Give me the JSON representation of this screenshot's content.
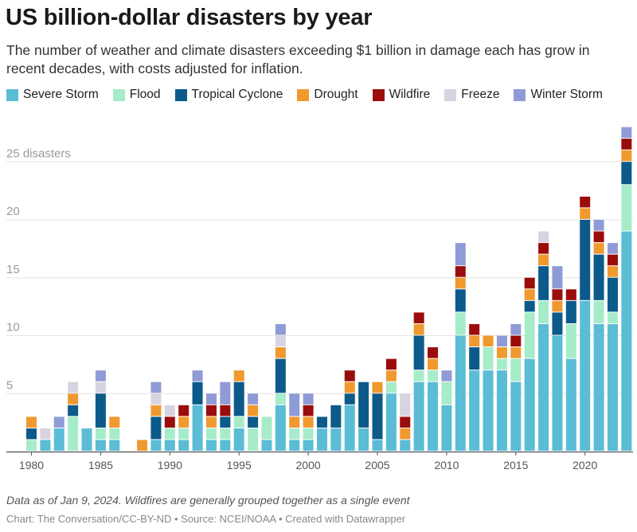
{
  "chart_data": {
    "type": "bar",
    "stacked": true,
    "title": "US billion-dollar disasters by year",
    "subtitle": "The number of weather and climate disasters exceeding $1 billion in damage each has grow in recent decades, with costs adjusted for inflation.",
    "x_tick_labels": [
      "1980",
      "1985",
      "1990",
      "1995",
      "2000",
      "2005",
      "2010",
      "2015",
      "2020"
    ],
    "y_tick_labels": [
      "5",
      "10",
      "15",
      "20",
      "25 disasters"
    ],
    "y_ticks": [
      5,
      10,
      15,
      20,
      25
    ],
    "ylim": [
      0,
      28
    ],
    "legend_position": "top-left",
    "categories": [
      1980,
      1981,
      1982,
      1983,
      1984,
      1985,
      1986,
      1987,
      1988,
      1989,
      1990,
      1991,
      1992,
      1993,
      1994,
      1995,
      1996,
      1997,
      1998,
      1999,
      2000,
      2001,
      2002,
      2003,
      2004,
      2005,
      2006,
      2007,
      2008,
      2009,
      2010,
      2011,
      2012,
      2013,
      2014,
      2015,
      2016,
      2017,
      2018,
      2019,
      2020,
      2021,
      2022,
      2023
    ],
    "series": [
      {
        "name": "Severe Storm",
        "color": "#5bbcd6",
        "values": [
          0,
          1,
          2,
          0,
          2,
          1,
          1,
          0,
          0,
          1,
          1,
          1,
          4,
          1,
          1,
          2,
          0,
          1,
          4,
          1,
          1,
          2,
          2,
          4,
          2,
          1,
          5,
          1,
          6,
          6,
          4,
          10,
          7,
          7,
          7,
          6,
          8,
          11,
          10,
          8,
          13,
          11,
          11,
          19
        ]
      },
      {
        "name": "Flood",
        "color": "#a6ecc9",
        "values": [
          1,
          0,
          0,
          3,
          0,
          1,
          1,
          0,
          0,
          0,
          1,
          1,
          0,
          1,
          1,
          1,
          2,
          2,
          1,
          1,
          1,
          0,
          0,
          0,
          0,
          0,
          1,
          0,
          1,
          1,
          2,
          2,
          0,
          2,
          1,
          2,
          4,
          2,
          0,
          3,
          0,
          2,
          1,
          4
        ]
      },
      {
        "name": "Tropical Cyclone",
        "color": "#0b5a8a",
        "values": [
          1,
          0,
          0,
          1,
          0,
          3,
          0,
          0,
          0,
          2,
          0,
          0,
          2,
          0,
          1,
          3,
          1,
          0,
          3,
          0,
          0,
          1,
          2,
          1,
          4,
          4,
          0,
          0,
          3,
          0,
          0,
          2,
          2,
          0,
          0,
          0,
          1,
          3,
          2,
          2,
          7,
          4,
          3,
          2
        ]
      },
      {
        "name": "Drought",
        "color": "#f0992f",
        "values": [
          1,
          0,
          0,
          1,
          0,
          0,
          1,
          0,
          1,
          1,
          0,
          1,
          0,
          1,
          0,
          1,
          1,
          0,
          1,
          1,
          1,
          0,
          0,
          1,
          0,
          1,
          1,
          1,
          1,
          1,
          0,
          1,
          1,
          1,
          1,
          1,
          1,
          1,
          1,
          0,
          1,
          1,
          1,
          1
        ]
      },
      {
        "name": "Wildfire",
        "color": "#9b0c0c",
        "values": [
          0,
          0,
          0,
          0,
          0,
          0,
          0,
          0,
          0,
          0,
          1,
          1,
          0,
          1,
          1,
          0,
          0,
          0,
          0,
          0,
          1,
          0,
          0,
          1,
          0,
          0,
          1,
          1,
          1,
          1,
          0,
          1,
          1,
          0,
          0,
          1,
          1,
          1,
          1,
          1,
          1,
          1,
          1,
          1
        ]
      },
      {
        "name": "Freeze",
        "color": "#d8d3e0",
        "values": [
          0,
          1,
          0,
          1,
          0,
          1,
          0,
          0,
          0,
          1,
          1,
          0,
          0,
          0,
          0,
          0,
          0,
          0,
          1,
          0,
          0,
          0,
          0,
          0,
          0,
          0,
          0,
          2,
          0,
          0,
          0,
          0,
          0,
          0,
          0,
          0,
          0,
          1,
          0,
          0,
          0,
          0,
          0,
          0
        ]
      },
      {
        "name": "Winter Storm",
        "color": "#8f9bd6",
        "values": [
          0,
          0,
          1,
          0,
          0,
          1,
          0,
          0,
          0,
          1,
          0,
          0,
          1,
          1,
          2,
          0,
          1,
          0,
          1,
          2,
          1,
          0,
          0,
          0,
          0,
          0,
          0,
          0,
          0,
          0,
          1,
          2,
          0,
          0,
          1,
          1,
          0,
          0,
          2,
          0,
          0,
          1,
          1,
          1
        ]
      }
    ],
    "note": "Data as of Jan 9, 2024. Wildfires are generally grouped together as a single event",
    "credit": "Chart: The Conversation/CC-BY-ND • Source: NCEI/NOAA • Created with Datawrapper"
  }
}
